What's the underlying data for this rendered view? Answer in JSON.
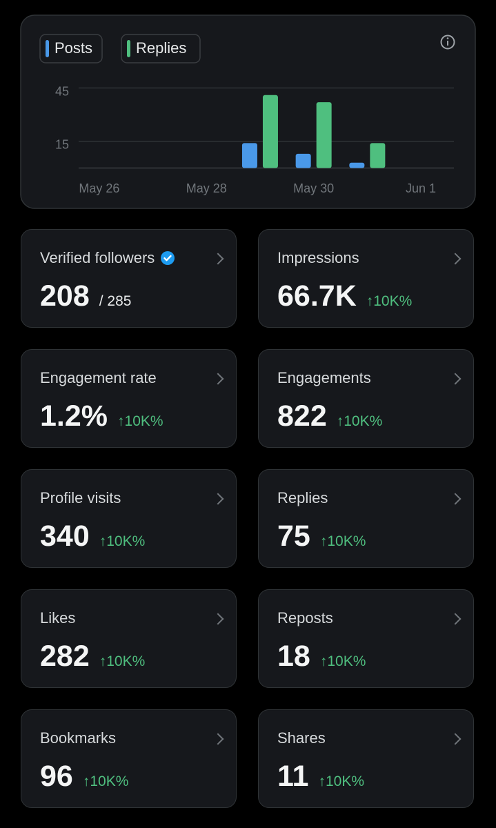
{
  "chart_data": {
    "type": "bar",
    "categories": [
      "May 26",
      null,
      "May 28",
      null,
      "May 30",
      null,
      "Jun 1"
    ],
    "series": [
      {
        "name": "Posts",
        "color": "#4a99e9",
        "values": [
          0,
          0,
          0,
          14,
          8,
          3,
          0
        ]
      },
      {
        "name": "Replies",
        "color": "#4fbf7f",
        "values": [
          0,
          0,
          0,
          41,
          37,
          14,
          0
        ]
      }
    ],
    "ylim": [
      0,
      45
    ],
    "yticks": [
      15,
      45
    ],
    "grid": true
  },
  "cards": [
    {
      "title": "Verified followers",
      "value": "208",
      "total": "/ 285"
    },
    {
      "title": "Impressions",
      "value": "66.7K",
      "change": "↑10K%"
    },
    {
      "title": "Engagement rate",
      "value": "1.2%",
      "change": "↑10K%"
    },
    {
      "title": "Engagements",
      "value": "822",
      "change": "↑10K%"
    },
    {
      "title": "Profile visits",
      "value": "340",
      "change": "↑10K%"
    },
    {
      "title": "Replies",
      "value": "75",
      "change": "↑10K%"
    },
    {
      "title": "Likes",
      "value": "282",
      "change": "↑10K%"
    },
    {
      "title": "Reposts",
      "value": "18",
      "change": "↑10K%"
    },
    {
      "title": "Bookmarks",
      "value": "96",
      "change": "↑10K%"
    },
    {
      "title": "Shares",
      "value": "11",
      "change": "↑10K%"
    }
  ]
}
